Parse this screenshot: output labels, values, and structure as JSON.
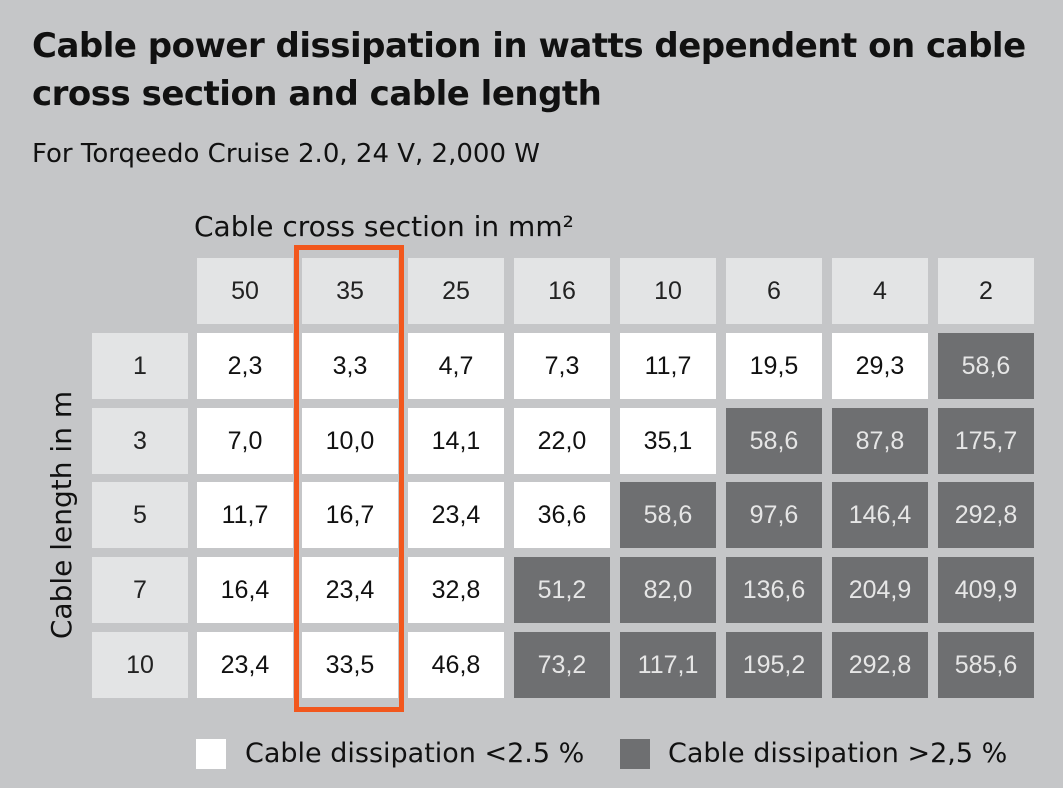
{
  "chart_data": {
    "type": "table",
    "title": "Cable power dissipation in watts dependent on cable cross section and cable length",
    "subtitle": "For Torqeedo Cruise 2.0, 24 V, 2,000 W",
    "column_axis_label": "Cable cross section in mm²",
    "row_axis_label": "Cable length in m",
    "columns": [
      "50",
      "35",
      "25",
      "16",
      "10",
      "6",
      "4",
      "2"
    ],
    "rows": [
      "1",
      "3",
      "5",
      "7",
      "10"
    ],
    "values": [
      [
        "2,3",
        "3,3",
        "4,7",
        "7,3",
        "11,7",
        "19,5",
        "29,3",
        "58,6"
      ],
      [
        "7,0",
        "10,0",
        "14,1",
        "22,0",
        "35,1",
        "58,6",
        "87,8",
        "175,7"
      ],
      [
        "11,7",
        "16,7",
        "23,4",
        "36,6",
        "58,6",
        "97,6",
        "146,4",
        "292,8"
      ],
      [
        "16,4",
        "23,4",
        "32,8",
        "51,2",
        "82,0",
        "136,6",
        "204,9",
        "409,9"
      ],
      [
        "23,4",
        "33,5",
        "46,8",
        "73,2",
        "117,1",
        "195,2",
        "292,8",
        "585,6"
      ]
    ],
    "category": [
      [
        "low",
        "low",
        "low",
        "low",
        "low",
        "low",
        "low",
        "high"
      ],
      [
        "low",
        "low",
        "low",
        "low",
        "low",
        "high",
        "high",
        "high"
      ],
      [
        "low",
        "low",
        "low",
        "low",
        "high",
        "high",
        "high",
        "high"
      ],
      [
        "low",
        "low",
        "low",
        "high",
        "high",
        "high",
        "high",
        "high"
      ],
      [
        "low",
        "low",
        "low",
        "high",
        "high",
        "high",
        "high",
        "high"
      ]
    ],
    "highlighted_column": "35",
    "legend": [
      {
        "key": "low",
        "label": "Cable dissipation <2.5 %",
        "color": "#ffffff"
      },
      {
        "key": "high",
        "label": "Cable dissipation >2,5 %",
        "color": "#6e6f71"
      }
    ],
    "colors": {
      "background": "#c5c6c8",
      "header": "#e3e4e5",
      "highlight": "#f2571d"
    }
  }
}
